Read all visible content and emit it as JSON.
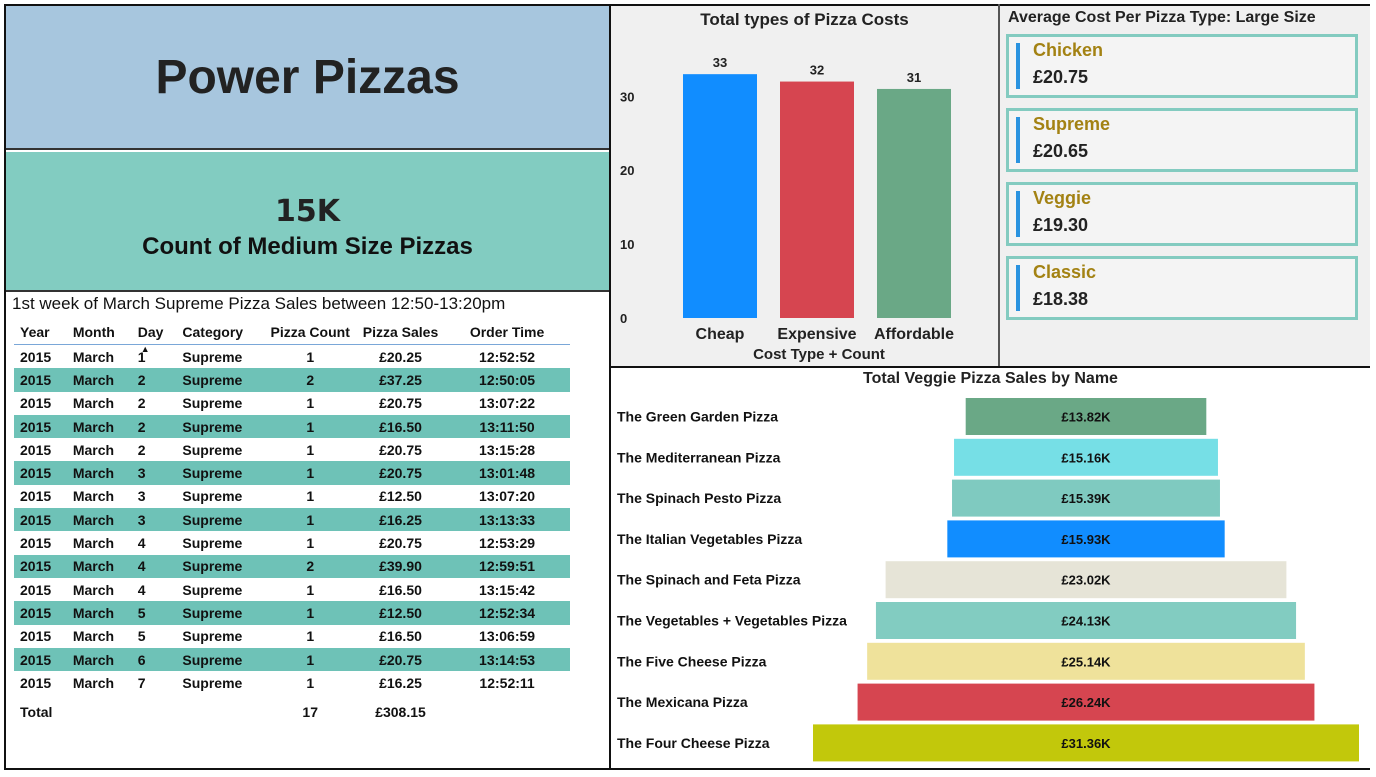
{
  "title": "Power Pizzas",
  "kpi": {
    "value": "15K",
    "label": "Count of Medium Size Pizzas"
  },
  "sales_table": {
    "title": "1st week of March Supreme Pizza Sales between 12:50-13:20pm",
    "columns": [
      "Year",
      "Month",
      "Day",
      "Category",
      "Pizza Count",
      "Pizza Sales",
      "Order Time"
    ],
    "rows": [
      [
        "2015",
        "March",
        "1",
        "Supreme",
        "1",
        "£20.25",
        "12:52:52"
      ],
      [
        "2015",
        "March",
        "2",
        "Supreme",
        "2",
        "£37.25",
        "12:50:05"
      ],
      [
        "2015",
        "March",
        "2",
        "Supreme",
        "1",
        "£20.75",
        "13:07:22"
      ],
      [
        "2015",
        "March",
        "2",
        "Supreme",
        "1",
        "£16.50",
        "13:11:50"
      ],
      [
        "2015",
        "March",
        "2",
        "Supreme",
        "1",
        "£20.75",
        "13:15:28"
      ],
      [
        "2015",
        "March",
        "3",
        "Supreme",
        "1",
        "£20.75",
        "13:01:48"
      ],
      [
        "2015",
        "March",
        "3",
        "Supreme",
        "1",
        "£12.50",
        "13:07:20"
      ],
      [
        "2015",
        "March",
        "3",
        "Supreme",
        "1",
        "£16.25",
        "13:13:33"
      ],
      [
        "2015",
        "March",
        "4",
        "Supreme",
        "1",
        "£20.75",
        "12:53:29"
      ],
      [
        "2015",
        "March",
        "4",
        "Supreme",
        "2",
        "£39.90",
        "12:59:51"
      ],
      [
        "2015",
        "March",
        "4",
        "Supreme",
        "1",
        "£16.50",
        "13:15:42"
      ],
      [
        "2015",
        "March",
        "5",
        "Supreme",
        "1",
        "£12.50",
        "12:52:34"
      ],
      [
        "2015",
        "March",
        "5",
        "Supreme",
        "1",
        "£16.50",
        "13:06:59"
      ],
      [
        "2015",
        "March",
        "6",
        "Supreme",
        "1",
        "£20.75",
        "13:14:53"
      ],
      [
        "2015",
        "March",
        "7",
        "Supreme",
        "1",
        "£16.25",
        "12:52:11"
      ]
    ],
    "total": {
      "label": "Total",
      "count": "17",
      "sales": "£308.15"
    }
  },
  "chart_data": [
    {
      "type": "bar",
      "title": "Total types of Pizza Costs",
      "xlabel": "Cost Type + Count",
      "ylabel": "",
      "categories": [
        "Cheap",
        "Expensive",
        "Affordable"
      ],
      "values": [
        33,
        32,
        31
      ],
      "colors": [
        "#118dff",
        "#d64550",
        "#6aa886"
      ],
      "ylim": [
        0,
        36
      ],
      "yticks": [
        0,
        10,
        20,
        30
      ]
    },
    {
      "type": "bar",
      "orientation": "horizontal-funnel",
      "title": "Total Veggie Pizza Sales by Name",
      "categories": [
        "The Green Garden Pizza",
        "The Mediterranean Pizza",
        "The Spinach Pesto Pizza",
        "The Italian Vegetables Pizza",
        "The Spinach and Feta Pizza",
        "The Vegetables + Vegetables Pizza",
        "The Five Cheese Pizza",
        "The Mexicana Pizza",
        "The Four Cheese Pizza"
      ],
      "values": [
        13.82,
        15.16,
        15.39,
        15.93,
        23.02,
        24.13,
        25.14,
        26.24,
        31.36
      ],
      "value_labels": [
        "£13.82K",
        "£15.16K",
        "£15.39K",
        "£15.93K",
        "£23.02K",
        "£24.13K",
        "£25.14K",
        "£26.24K",
        "£31.36K"
      ],
      "colors": [
        "#6aa886",
        "#76dfe6",
        "#7fcac0",
        "#118dff",
        "#e6e4d7",
        "#82ccc1",
        "#efe29b",
        "#d64550",
        "#c2c80b"
      ]
    }
  ],
  "avg_cost": {
    "title": "Average Cost Per Pizza Type: Large Size",
    "cards": [
      {
        "name": "Chicken",
        "value": "£20.75"
      },
      {
        "name": "Supreme",
        "value": "£20.65"
      },
      {
        "name": "Veggie",
        "value": "£19.30"
      },
      {
        "name": "Classic",
        "value": "£18.38"
      }
    ]
  }
}
